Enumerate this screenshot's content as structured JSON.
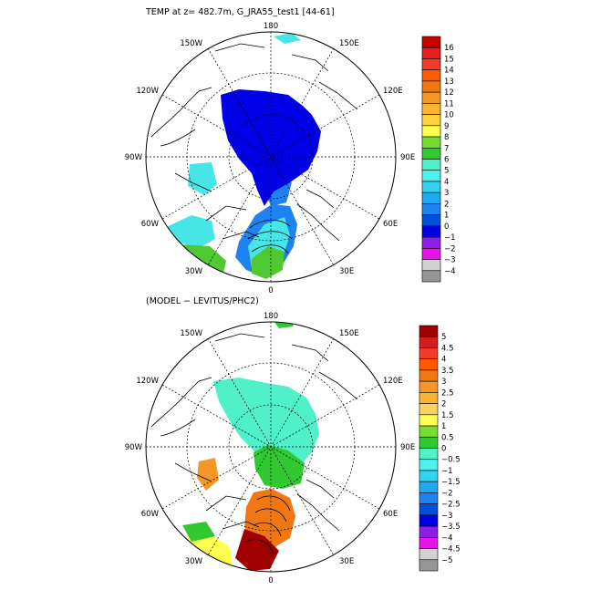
{
  "top_panel": {
    "title": "TEMP at z= 482.7m, G_JRA55_test1 [44-61]",
    "lon_labels": {
      "n": "180",
      "s": "0",
      "w": "90W",
      "e": "90E",
      "nw1": "150W",
      "ne1": "150E",
      "nw2": "120W",
      "ne2": "120E",
      "sw1": "60W",
      "se1": "60E",
      "sw2": "30W",
      "se2": "30E"
    },
    "colorbar": {
      "labels": [
        "16",
        "15",
        "14",
        "13",
        "12",
        "11",
        "10",
        "9",
        "8",
        "7",
        "6",
        "5",
        "4",
        "3",
        "2",
        "1",
        "0",
        "−1",
        "−2",
        "−3",
        "−4"
      ],
      "colors": [
        "#c80000",
        "#e61e1e",
        "#f03c28",
        "#ff5a00",
        "#f07814",
        "#f59628",
        "#fab432",
        "#ffd23c",
        "#ffff50",
        "#78dc32",
        "#32c832",
        "#50f0c8",
        "#50f0f0",
        "#32d2f0",
        "#1eaaf0",
        "#1e82f0",
        "#0050dc",
        "#0000e6",
        "#8c1ee6",
        "#e614e6",
        "#d2d2d2",
        "#969696"
      ]
    },
    "colors": {
      "cold_core": "#0000e6",
      "shelf": "#46e6e6",
      "mid": "#1e82f0",
      "warm_low": "#50c832",
      "yellow": "#ffff50"
    }
  },
  "bottom_panel": {
    "title": "(MODEL − LEVITUS/PHC2)",
    "lon_labels": {
      "n": "180",
      "s": "0",
      "w": "90W",
      "e": "90E",
      "nw1": "150W",
      "ne1": "150E",
      "nw2": "120W",
      "ne2": "120E",
      "sw1": "60W",
      "se1": "60E",
      "sw2": "30W",
      "se2": "30E"
    },
    "colorbar": {
      "labels": [
        "5",
        "4.5",
        "4",
        "3.5",
        "3",
        "2.5",
        "2",
        "1.5",
        "1",
        "0.5",
        "0",
        "−0.5",
        "−1",
        "−1.5",
        "−2",
        "−2.5",
        "−3",
        "−3.5",
        "−4",
        "−4.5",
        "−5"
      ],
      "colors": [
        "#a00000",
        "#d21e1e",
        "#f03c28",
        "#ff5a00",
        "#f07814",
        "#f59628",
        "#fab432",
        "#fad264",
        "#ffff50",
        "#78dc32",
        "#32c832",
        "#50f0c8",
        "#50f0f0",
        "#32d2f0",
        "#1eaaf0",
        "#1e82f0",
        "#0050dc",
        "#0000e6",
        "#8c1ee6",
        "#e614e6",
        "#d2d2d2",
        "#969696"
      ]
    },
    "colors": {
      "basin": "#50f0c8",
      "green": "#32c832",
      "orange": "#f07814",
      "dark_red": "#a00000",
      "yellow": "#ffff50"
    }
  }
}
